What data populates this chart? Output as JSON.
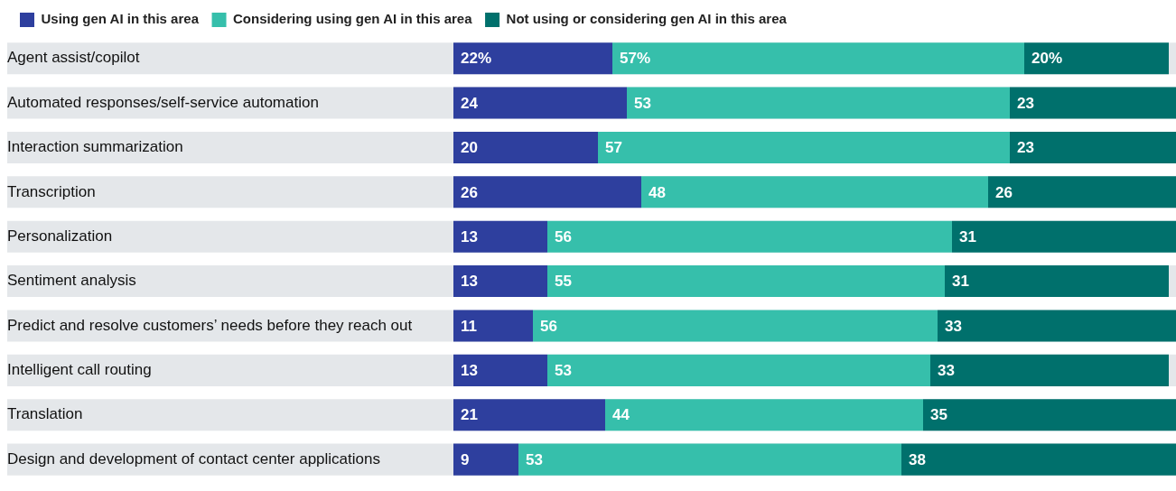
{
  "chart_data": {
    "type": "bar",
    "orientation": "horizontal",
    "stacked": true,
    "legend": "top left",
    "grid": false,
    "tick_labels": "y",
    "xlim": [
      0,
      100
    ],
    "categories": [
      "Agent assist/copilot",
      "Automated responses/self-service automation",
      "Interaction summarization",
      "Transcription",
      "Personalization",
      "Sentiment analysis",
      "Predict and resolve customers’ needs before they reach out",
      "Intelligent call routing",
      "Translation",
      "Design and development of contact center applications"
    ],
    "series": [
      {
        "name": "Using gen AI in this area",
        "color": "#2e3f9e",
        "values": [
          22,
          24,
          20,
          26,
          13,
          13,
          11,
          13,
          21,
          9
        ],
        "value_labels": [
          "22%",
          "24",
          "20",
          "26",
          "13",
          "13",
          "11",
          "13",
          "21",
          "9"
        ]
      },
      {
        "name": "Considering using gen AI in this area",
        "color": "#36bfab",
        "values": [
          57,
          53,
          57,
          48,
          56,
          55,
          56,
          53,
          44,
          53
        ],
        "value_labels": [
          "57%",
          "53",
          "57",
          "48",
          "56",
          "55",
          "56",
          "53",
          "44",
          "53"
        ]
      },
      {
        "name": "Not using or considering gen AI in this area",
        "color": "#00706c",
        "values": [
          20,
          23,
          23,
          26,
          31,
          31,
          33,
          33,
          35,
          38
        ],
        "value_labels": [
          "20%",
          "23",
          "23",
          "26",
          "31",
          "31",
          "33",
          "33",
          "35",
          "38"
        ]
      }
    ]
  }
}
